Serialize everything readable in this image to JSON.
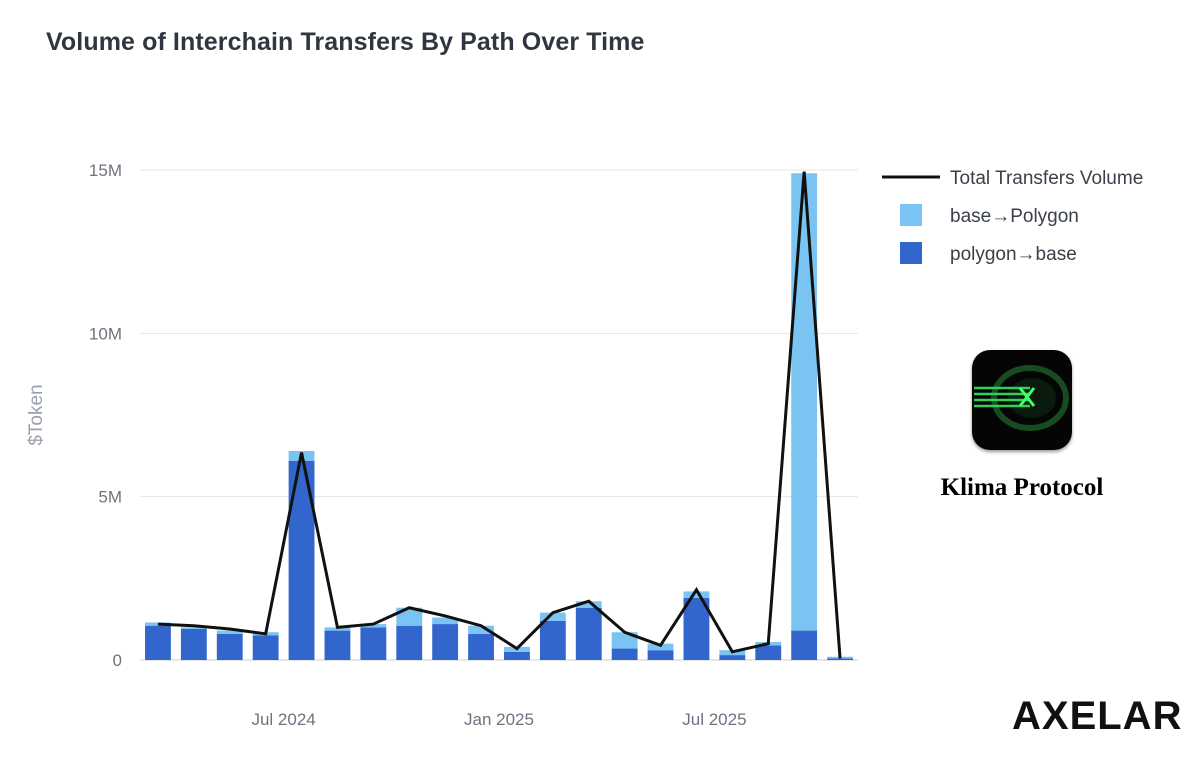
{
  "title": "Volume of Interchain Transfers By Path Over Time",
  "chart_data": {
    "type": "bar",
    "stacked": true,
    "ylabel": "$Token",
    "ylim": [
      0,
      15000000
    ],
    "y_ticks": [
      {
        "value": 0,
        "label": "0"
      },
      {
        "value": 5000000,
        "label": "5M"
      },
      {
        "value": 10000000,
        "label": "10M"
      },
      {
        "value": 15000000,
        "label": "15M"
      }
    ],
    "x_ticks": [
      {
        "index": 3.5,
        "label": "Jul 2024"
      },
      {
        "index": 9.5,
        "label": "Jan 2025"
      },
      {
        "index": 15.5,
        "label": "Jul 2025"
      }
    ],
    "x_months": [
      "2024-04",
      "2024-05",
      "2024-06",
      "2024-07",
      "2024-08",
      "2024-09",
      "2024-10",
      "2024-11",
      "2024-12",
      "2025-01",
      "2025-02",
      "2025-03",
      "2025-04",
      "2025-05",
      "2025-06",
      "2025-07",
      "2025-08",
      "2025-09",
      "2025-10",
      "2025-11"
    ],
    "grid": true,
    "legend_position": "right",
    "series": [
      {
        "name": "polygon→base",
        "kind": "bar",
        "color": "#3366cc",
        "values": [
          1050000,
          950000,
          800000,
          750000,
          6100000,
          900000,
          1000000,
          1050000,
          1100000,
          800000,
          250000,
          1200000,
          1600000,
          350000,
          300000,
          1900000,
          150000,
          450000,
          900000,
          50000
        ]
      },
      {
        "name": "base→Polygon",
        "kind": "bar",
        "color": "#79c4f2",
        "values": [
          100000,
          50000,
          100000,
          100000,
          300000,
          100000,
          100000,
          550000,
          200000,
          250000,
          150000,
          250000,
          200000,
          500000,
          200000,
          200000,
          150000,
          100000,
          14000000,
          50000
        ]
      },
      {
        "name": "Total Transfers Volume",
        "kind": "line",
        "color": "#111111",
        "values": [
          1100000,
          1050000,
          950000,
          800000,
          6350000,
          1000000,
          1100000,
          1600000,
          1350000,
          1050000,
          350000,
          1450000,
          1800000,
          850000,
          450000,
          2150000,
          250000,
          500000,
          14950000,
          50000
        ]
      }
    ]
  },
  "legend": [
    {
      "label": "Total Transfers Volume",
      "type": "line",
      "color": "#111111"
    },
    {
      "label": "base→Polygon",
      "type": "box",
      "color": "#79c4f2"
    },
    {
      "label": "polygon→base",
      "type": "box",
      "color": "#3366cc"
    }
  ],
  "branding": {
    "project_name": "Klima Protocol",
    "logo_icon": "klima-logo-icon",
    "footer_logo": "AXELAR"
  }
}
